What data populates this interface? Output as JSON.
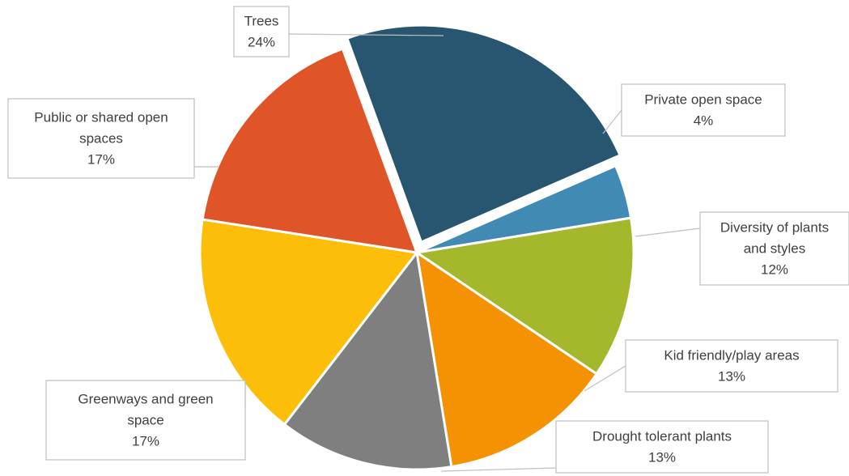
{
  "chart_data": {
    "type": "pie",
    "title": "",
    "slices": [
      {
        "label": "Trees",
        "value": 24,
        "display": "24%",
        "color": "#285670"
      },
      {
        "label": "Private open space",
        "value": 4,
        "display": "4%",
        "color": "#418ab3"
      },
      {
        "label": "Diversity of plants and styles",
        "value": 12,
        "display": "12%",
        "color": "#a5b82c"
      },
      {
        "label": "Kid friendly/play areas",
        "value": 13,
        "display": "13%",
        "color": "#f59203"
      },
      {
        "label": "Drought tolerant plants",
        "value": 13,
        "display": "13%",
        "color": "#7f7f7f"
      },
      {
        "label": "Greenways and green space",
        "value": 17,
        "display": "17%",
        "color": "#fcbe08"
      },
      {
        "label": "Public or shared open spaces",
        "value": 17,
        "display": "17%",
        "color": "#e05528"
      }
    ]
  }
}
